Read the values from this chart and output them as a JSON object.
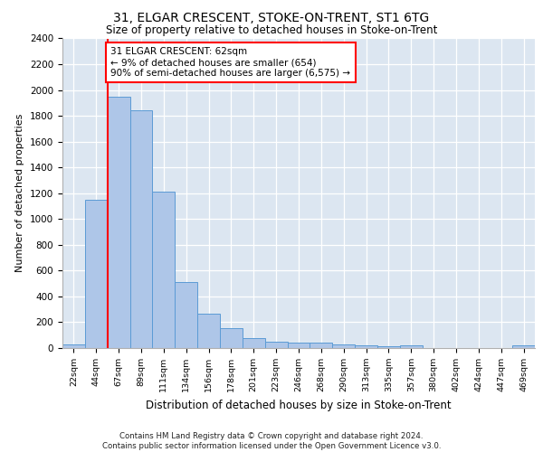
{
  "title": "31, ELGAR CRESCENT, STOKE-ON-TRENT, ST1 6TG",
  "subtitle": "Size of property relative to detached houses in Stoke-on-Trent",
  "xlabel": "Distribution of detached houses by size in Stoke-on-Trent",
  "ylabel": "Number of detached properties",
  "categories": [
    "22sqm",
    "44sqm",
    "67sqm",
    "89sqm",
    "111sqm",
    "134sqm",
    "156sqm",
    "178sqm",
    "201sqm",
    "223sqm",
    "246sqm",
    "268sqm",
    "290sqm",
    "313sqm",
    "335sqm",
    "357sqm",
    "380sqm",
    "402sqm",
    "424sqm",
    "447sqm",
    "469sqm"
  ],
  "values": [
    30,
    1150,
    1950,
    1840,
    1210,
    515,
    265,
    155,
    80,
    50,
    45,
    40,
    25,
    20,
    15,
    20,
    0,
    0,
    0,
    0,
    20
  ],
  "bar_color": "#aec6e8",
  "bar_edge_color": "#5b9bd5",
  "background_color": "#dce6f1",
  "annotation_text": "31 ELGAR CRESCENT: 62sqm\n← 9% of detached houses are smaller (654)\n90% of semi-detached houses are larger (6,575) →",
  "vline_x_idx": 1,
  "vline_color": "red",
  "annotation_box_color": "white",
  "annotation_box_edge": "red",
  "ylim": [
    0,
    2400
  ],
  "yticks": [
    0,
    200,
    400,
    600,
    800,
    1000,
    1200,
    1400,
    1600,
    1800,
    2000,
    2200,
    2400
  ],
  "footer_line1": "Contains HM Land Registry data © Crown copyright and database right 2024.",
  "footer_line2": "Contains public sector information licensed under the Open Government Licence v3.0."
}
